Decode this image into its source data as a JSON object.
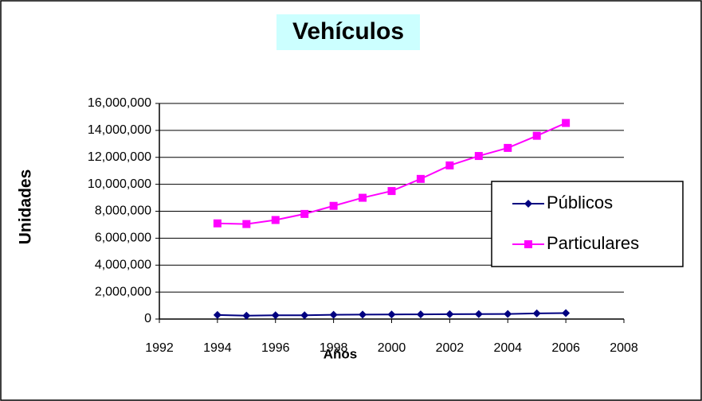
{
  "chart_data": {
    "type": "line",
    "title": "Vehículos",
    "x_label": "Años",
    "y_label": "Unidades",
    "x": [
      1994,
      1995,
      1996,
      1997,
      1998,
      1999,
      2000,
      2001,
      2002,
      2003,
      2004,
      2005,
      2006
    ],
    "series": [
      {
        "name": "Públicos",
        "color": "#000080",
        "marker": "diamond",
        "values": [
          300000,
          250000,
          280000,
          280000,
          320000,
          330000,
          340000,
          350000,
          360000,
          370000,
          380000,
          420000,
          440000
        ]
      },
      {
        "name": "Particulares",
        "color": "#ff00ff",
        "marker": "square",
        "values": [
          7100000,
          7050000,
          7350000,
          7800000,
          8400000,
          9000000,
          9500000,
          10400000,
          11400000,
          12100000,
          12700000,
          13600000,
          14550000
        ]
      }
    ],
    "xlim": [
      1992,
      2008
    ],
    "xticks": [
      1992,
      1994,
      1996,
      1998,
      2000,
      2002,
      2004,
      2006,
      2008
    ],
    "ylim": [
      0,
      16000000
    ],
    "yticks": [
      0,
      {
        "value": 2000000,
        "label": "2,000,000"
      },
      {
        "value": 4000000,
        "label": "4,000,000"
      },
      {
        "value": 6000000,
        "label": "6,000,000"
      },
      {
        "value": 8000000,
        "label": "8,000,000"
      },
      {
        "value": 10000000,
        "label": "10,000,000"
      },
      {
        "value": 12000000,
        "label": "12,000,000"
      },
      {
        "value": 14000000,
        "label": "14,000,000"
      },
      {
        "value": 16000000,
        "label": "16,000,000"
      }
    ],
    "grid": true,
    "legend": "right"
  }
}
